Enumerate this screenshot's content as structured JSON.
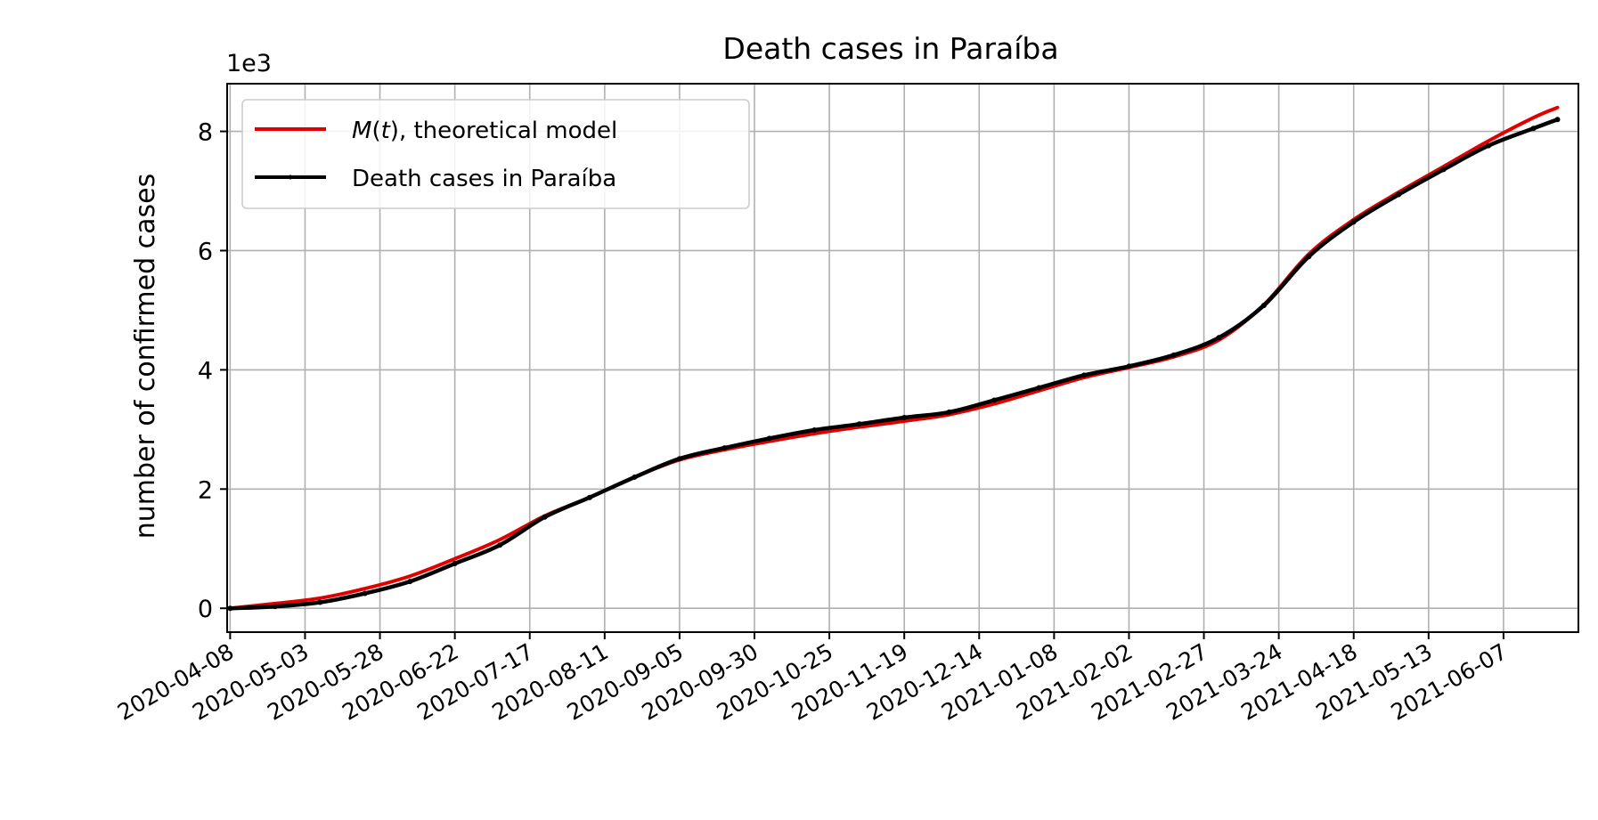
{
  "chart_data": {
    "type": "line",
    "title": "Death cases in Paraíba",
    "ylabel": "number of confirmed cases",
    "xlabel": "",
    "y_offset_label": "1e3",
    "y_scale": 1000,
    "ylim": [
      -0.4,
      8.8
    ],
    "yticks": [
      0,
      2,
      4,
      6,
      8
    ],
    "xlim": [
      "2020-04-07",
      "2021-07-02"
    ],
    "xticks": [
      "2020-04-08",
      "2020-05-03",
      "2020-05-28",
      "2020-06-22",
      "2020-07-17",
      "2020-08-11",
      "2020-09-05",
      "2020-09-30",
      "2020-10-25",
      "2020-11-19",
      "2020-12-14",
      "2021-01-08",
      "2021-02-02",
      "2021-02-27",
      "2021-03-24",
      "2021-04-18",
      "2021-05-13",
      "2021-06-07"
    ],
    "grid": true,
    "legend_position": "upper-left",
    "series": [
      {
        "name": "M(t), theoretical model",
        "name_parts": [
          "M",
          "(",
          "t",
          "), theoretical model"
        ],
        "color": "#e00000",
        "x": [
          "2020-04-08",
          "2020-04-23",
          "2020-05-08",
          "2020-05-23",
          "2020-06-07",
          "2020-06-22",
          "2020-07-07",
          "2020-07-22",
          "2020-08-06",
          "2020-08-21",
          "2020-09-05",
          "2020-09-20",
          "2020-10-05",
          "2020-10-20",
          "2020-11-04",
          "2020-11-19",
          "2020-12-04",
          "2020-12-19",
          "2021-01-03",
          "2021-01-18",
          "2021-02-02",
          "2021-02-17",
          "2021-03-04",
          "2021-03-19",
          "2021-04-03",
          "2021-04-18",
          "2021-05-03",
          "2021-05-18",
          "2021-06-02",
          "2021-06-17",
          "2021-06-25"
        ],
        "y": [
          0,
          80,
          170,
          330,
          540,
          830,
          1150,
          1550,
          1860,
          2200,
          2490,
          2660,
          2800,
          2930,
          3040,
          3140,
          3250,
          3430,
          3650,
          3870,
          4040,
          4220,
          4500,
          5090,
          5940,
          6520,
          6980,
          7410,
          7840,
          8230,
          8400
        ]
      },
      {
        "name": "Death cases in Paraíba",
        "color": "#000000",
        "x": [
          "2020-04-08",
          "2020-04-23",
          "2020-05-08",
          "2020-05-23",
          "2020-06-07",
          "2020-06-22",
          "2020-07-07",
          "2020-07-22",
          "2020-08-06",
          "2020-08-21",
          "2020-09-05",
          "2020-09-20",
          "2020-10-05",
          "2020-10-20",
          "2020-11-04",
          "2020-11-19",
          "2020-12-04",
          "2020-12-19",
          "2021-01-03",
          "2021-01-18",
          "2021-02-02",
          "2021-02-17",
          "2021-03-04",
          "2021-03-19",
          "2021-04-03",
          "2021-04-18",
          "2021-05-03",
          "2021-05-18",
          "2021-06-02",
          "2021-06-17",
          "2021-06-25"
        ],
        "y": [
          0,
          30,
          100,
          250,
          450,
          750,
          1060,
          1530,
          1860,
          2200,
          2510,
          2690,
          2850,
          2990,
          3090,
          3200,
          3290,
          3490,
          3700,
          3910,
          4060,
          4250,
          4540,
          5080,
          5900,
          6480,
          6940,
          7360,
          7760,
          8050,
          8200
        ]
      }
    ]
  }
}
